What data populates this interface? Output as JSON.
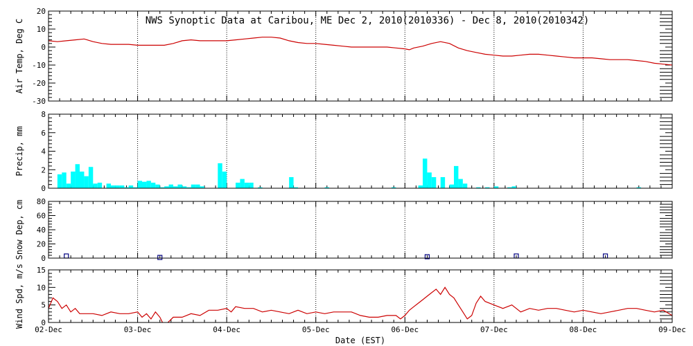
{
  "chart_data": {
    "title": "NWS Synoptic Data at Caribou, ME   Dec  2, 2010(2010336) - Dec  8, 2010(2010342)",
    "xlabel": "Date (EST)",
    "x_tick_labels": [
      "02-Dec",
      "03-Dec",
      "04-Dec",
      "05-Dec",
      "06-Dec",
      "07-Dec",
      "08-Dec",
      "09-Dec"
    ],
    "x_range_days": [
      0,
      7
    ],
    "grid": "dotted vertical at day boundaries",
    "panels": [
      {
        "id": "temp",
        "type": "line",
        "ylabel": "Air Temp, Deg C",
        "ylim": [
          -30,
          20
        ],
        "yticks": [
          -30,
          -20,
          -10,
          0,
          10,
          20
        ],
        "color": "#cc0000",
        "series": {
          "x": [
            0,
            0.1,
            0.2,
            0.3,
            0.4,
            0.5,
            0.6,
            0.7,
            0.8,
            0.9,
            1.0,
            1.1,
            1.2,
            1.3,
            1.4,
            1.5,
            1.6,
            1.7,
            1.8,
            1.9,
            2.0,
            2.1,
            2.2,
            2.3,
            2.4,
            2.5,
            2.6,
            2.7,
            2.8,
            2.9,
            3.0,
            3.1,
            3.2,
            3.3,
            3.4,
            3.5,
            3.6,
            3.7,
            3.8,
            3.9,
            4.0,
            4.05,
            4.1,
            4.2,
            4.3,
            4.4,
            4.5,
            4.6,
            4.7,
            4.8,
            4.9,
            5.0,
            5.1,
            5.2,
            5.3,
            5.4,
            5.5,
            5.6,
            5.7,
            5.8,
            5.9,
            6.0,
            6.1,
            6.2,
            6.3,
            6.4,
            6.5,
            6.6,
            6.7,
            6.8,
            6.9,
            7.0
          ],
          "values": [
            3.5,
            3,
            3.5,
            4,
            4.5,
            3,
            2,
            1.5,
            1.5,
            1.5,
            1,
            1,
            1,
            1,
            2,
            3.5,
            4,
            3.5,
            3.5,
            3.5,
            3.5,
            4,
            4.5,
            5,
            5.5,
            5.5,
            5,
            3.5,
            2.5,
            2,
            2,
            1.5,
            1,
            0.5,
            0,
            0,
            0,
            0,
            0,
            -0.5,
            -1,
            -1.5,
            -0.5,
            0.5,
            2,
            3,
            2,
            -0.5,
            -2,
            -3,
            -4,
            -4.5,
            -5,
            -5,
            -4.5,
            -4,
            -4,
            -4.5,
            -5,
            -5.5,
            -6,
            -6,
            -6,
            -6.5,
            -7,
            -7,
            -7,
            -7.5,
            -8,
            -9,
            -9.5,
            -10
          ]
        }
      },
      {
        "id": "precip",
        "type": "bar",
        "ylabel": "Precip, mm",
        "ylim": [
          0,
          8
        ],
        "yticks": [
          0,
          2,
          4,
          6,
          8
        ],
        "color": "#00ffff",
        "series": {
          "x": [
            0.1,
            0.15,
            0.2,
            0.25,
            0.3,
            0.35,
            0.4,
            0.45,
            0.5,
            0.55,
            0.65,
            0.7,
            0.75,
            0.8,
            0.85,
            0.9,
            0.95,
            1.0,
            1.05,
            1.1,
            1.15,
            1.2,
            1.25,
            1.3,
            1.35,
            1.4,
            1.45,
            1.5,
            1.55,
            1.6,
            1.65,
            1.7,
            1.9,
            1.95,
            2.1,
            2.15,
            2.2,
            2.25,
            2.35,
            2.7,
            2.75,
            3.1,
            3.85,
            4.15,
            4.2,
            4.25,
            4.3,
            4.4,
            4.5,
            4.55,
            4.6,
            4.65,
            4.8,
            4.9,
            5.0,
            5.15,
            5.2,
            6.6
          ],
          "values": [
            1.5,
            1.7,
            0.5,
            1.8,
            2.6,
            1.8,
            1.3,
            2.3,
            0.5,
            0.6,
            0.5,
            0.3,
            0.3,
            0.3,
            0.1,
            0.3,
            0.1,
            0.8,
            0.7,
            0.8,
            0.6,
            0.4,
            0.1,
            0.2,
            0.4,
            0.2,
            0.4,
            0.2,
            0.1,
            0.4,
            0.4,
            0.2,
            2.7,
            1.8,
            0.6,
            1.0,
            0.6,
            0.6,
            0.1,
            1.2,
            0.1,
            0.1,
            0.1,
            0.3,
            3.2,
            1.7,
            1.2,
            1.2,
            0.4,
            2.4,
            1.0,
            0.5,
            0.1,
            0.1,
            0.2,
            0.1,
            0.2,
            0.1
          ]
        }
      },
      {
        "id": "snow",
        "type": "scatter",
        "ylabel": "Snow Dep, cm",
        "ylim": [
          0,
          80
        ],
        "yticks": [
          0,
          20,
          40,
          60,
          80
        ],
        "color": "#000080",
        "series": {
          "x": [
            0.2,
            1.25,
            4.25,
            5.25,
            6.25
          ],
          "values": [
            2,
            0,
            1,
            2,
            2
          ]
        }
      },
      {
        "id": "wind",
        "type": "line",
        "ylabel": "Wind Spd, m/s",
        "ylim": [
          0,
          15
        ],
        "yticks": [
          0,
          5,
          10,
          15
        ],
        "color": "#cc0000",
        "series": {
          "x": [
            0,
            0.05,
            0.1,
            0.15,
            0.2,
            0.25,
            0.3,
            0.35,
            0.4,
            0.45,
            0.5,
            0.6,
            0.7,
            0.8,
            0.9,
            1.0,
            1.05,
            1.1,
            1.15,
            1.2,
            1.25,
            1.3,
            1.4,
            1.5,
            1.6,
            1.7,
            1.8,
            1.9,
            2.0,
            2.05,
            2.1,
            2.2,
            2.3,
            2.4,
            2.5,
            2.6,
            2.7,
            2.8,
            2.9,
            3.0,
            3.1,
            3.2,
            3.3,
            3.4,
            3.5,
            3.6,
            3.7,
            3.8,
            3.9,
            3.95,
            4.0,
            4.05,
            4.1,
            4.15,
            4.2,
            4.25,
            4.3,
            4.35,
            4.4,
            4.45,
            4.5,
            4.55,
            4.6,
            4.65,
            4.7,
            4.75,
            4.8,
            4.85,
            4.9,
            5.0,
            5.1,
            5.2,
            5.3,
            5.4,
            5.5,
            5.6,
            5.7,
            5.8,
            5.9,
            6.0,
            6.1,
            6.2,
            6.3,
            6.4,
            6.5,
            6.6,
            6.7,
            6.8,
            6.9,
            7.0
          ],
          "values": [
            4,
            7,
            6,
            4,
            5,
            3,
            4,
            2.5,
            2.5,
            2.5,
            2.5,
            2,
            3,
            2.5,
            2.5,
            3,
            1.5,
            2.5,
            1,
            3,
            1.5,
            -1,
            1.5,
            1.5,
            2.5,
            2,
            3.5,
            3.5,
            4,
            3,
            4.5,
            4,
            4,
            3,
            3.5,
            3,
            2.5,
            3.5,
            2.5,
            3,
            2.5,
            3,
            3,
            3,
            2,
            1.5,
            1.5,
            2,
            2,
            1,
            2,
            3.5,
            4.5,
            5.5,
            6.5,
            7.5,
            8.5,
            9.5,
            8,
            10,
            8,
            7,
            5,
            3,
            1,
            2,
            5.5,
            7.5,
            6,
            5,
            4,
            5,
            3,
            4,
            3.5,
            4,
            4,
            3.5,
            3,
            3.5,
            3,
            2.5,
            3,
            3.5,
            4,
            4,
            3.5,
            3,
            3.5,
            2
          ]
        }
      }
    ]
  }
}
